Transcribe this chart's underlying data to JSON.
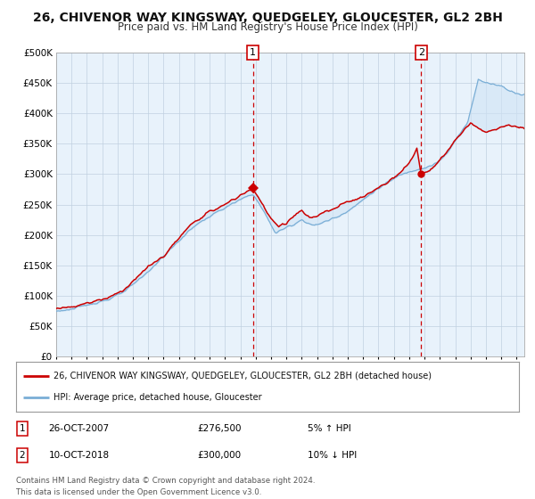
{
  "title": "26, CHIVENOR WAY KINGSWAY, QUEDGELEY, GLOUCESTER, GL2 2BH",
  "subtitle": "Price paid vs. HM Land Registry's House Price Index (HPI)",
  "ylim": [
    0,
    500000
  ],
  "yticks": [
    0,
    50000,
    100000,
    150000,
    200000,
    250000,
    300000,
    350000,
    400000,
    450000,
    500000
  ],
  "sale1_label": "26-OCT-2007",
  "sale1_x": 2007.82,
  "sale1_price": 276500,
  "sale1_pct": "5% ↑ HPI",
  "sale2_label": "10-OCT-2018",
  "sale2_x": 2018.78,
  "sale2_price": 300000,
  "sale2_pct": "10% ↓ HPI",
  "line_red_color": "#cc0000",
  "line_blue_color": "#7aaed6",
  "fill_color": "#d0e4f5",
  "vline_color": "#cc0000",
  "background_color": "#ffffff",
  "plot_bg_color": "#e8f2fb",
  "grid_color": "#c0d0e0",
  "title_fontsize": 10,
  "subtitle_fontsize": 8.5,
  "legend_label_red": "26, CHIVENOR WAY KINGSWAY, QUEDGELEY, GLOUCESTER, GL2 2BH (detached house)",
  "legend_label_blue": "HPI: Average price, detached house, Gloucester",
  "footnote": "Contains HM Land Registry data © Crown copyright and database right 2024.\nThis data is licensed under the Open Government Licence v3.0.",
  "xlim_start": 1995.0,
  "xlim_end": 2025.5
}
